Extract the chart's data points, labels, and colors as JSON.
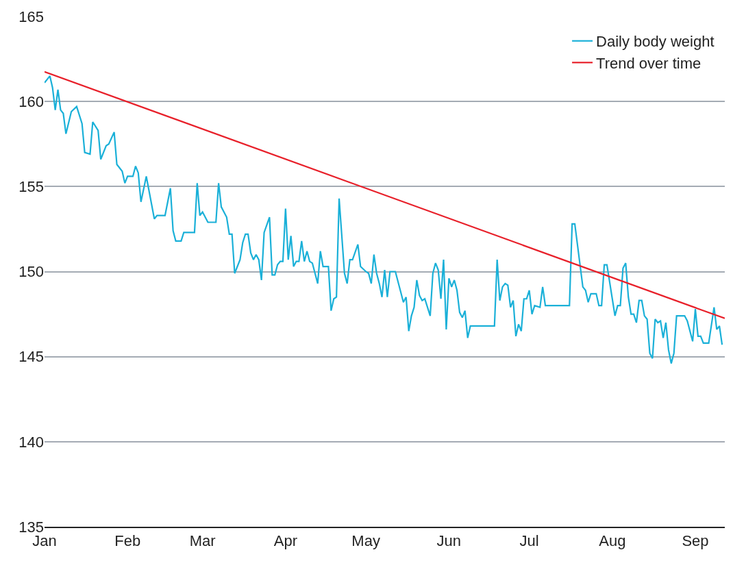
{
  "chart_data": {
    "type": "line",
    "xlim": [
      "--01-01",
      "--09-12"
    ],
    "xticks": [
      {
        "value": "--01-01",
        "label": "Jan"
      },
      {
        "value": "--02-01",
        "label": "Feb"
      },
      {
        "value": "--03-01",
        "label": "Mar"
      },
      {
        "value": "--04-01",
        "label": "Apr"
      },
      {
        "value": "--05-01",
        "label": "May"
      },
      {
        "value": "--06-01",
        "label": "Jun"
      },
      {
        "value": "--07-01",
        "label": "Jul"
      },
      {
        "value": "--08-01",
        "label": "Aug"
      },
      {
        "value": "--09-01",
        "label": "Sep"
      }
    ],
    "ylim": [
      135,
      165
    ],
    "yticks": [
      135,
      140,
      145,
      150,
      155,
      160,
      165
    ],
    "grid": "y",
    "legend": "top right",
    "marker": "none",
    "line_style": "solid",
    "series": [
      {
        "name": "Daily body weight",
        "color": "#1ab0d8",
        "x": [
          "--01-01",
          "--01-03",
          "--01-04",
          "--01-05",
          "--01-06",
          "--01-07",
          "--01-08",
          "--01-09",
          "--01-11",
          "--01-13",
          "--01-15",
          "--01-16",
          "--01-18",
          "--01-19",
          "--01-21",
          "--01-22",
          "--01-24",
          "--01-25",
          "--01-27",
          "--01-28",
          "--01-30",
          "--01-31",
          "--02-01",
          "--02-03",
          "--02-04",
          "--02-05",
          "--02-06",
          "--02-08",
          "--02-11",
          "--02-12",
          "--02-15",
          "--02-17",
          "--02-18",
          "--02-19",
          "--02-21",
          "--02-22",
          "--02-26",
          "--02-27",
          "--02-28",
          "--03-01",
          "--03-03",
          "--03-06",
          "--03-07",
          "--03-08",
          "--03-10",
          "--03-11",
          "--03-12",
          "--03-13",
          "--03-15",
          "--03-16",
          "--03-17",
          "--03-18",
          "--03-19",
          "--03-20",
          "--03-21",
          "--03-22",
          "--03-23",
          "--03-24",
          "--03-26",
          "--03-27",
          "--03-28",
          "--03-29",
          "--03-30",
          "--03-31",
          "--04-01",
          "--04-02",
          "--04-03",
          "--04-04",
          "--04-05",
          "--04-06",
          "--04-07",
          "--04-08",
          "--04-09",
          "--04-10",
          "--04-11",
          "--04-13",
          "--04-14",
          "--04-15",
          "--04-16",
          "--04-17",
          "--04-18",
          "--04-19",
          "--04-20",
          "--04-21",
          "--04-23",
          "--04-24",
          "--04-25",
          "--04-26",
          "--04-28",
          "--04-29",
          "--05-01",
          "--05-02",
          "--05-03",
          "--05-04",
          "--05-05",
          "--05-06",
          "--05-07",
          "--05-08",
          "--05-09",
          "--05-10",
          "--05-12",
          "--05-14",
          "--05-15",
          "--05-16",
          "--05-17",
          "--05-18",
          "--05-19",
          "--05-20",
          "--05-21",
          "--05-22",
          "--05-23",
          "--05-24",
          "--05-25",
          "--05-26",
          "--05-27",
          "--05-28",
          "--05-29",
          "--05-30",
          "--05-31",
          "--06-01",
          "--06-02",
          "--06-03",
          "--06-04",
          "--06-05",
          "--06-06",
          "--06-07",
          "--06-08",
          "--06-09",
          "--06-18",
          "--06-19",
          "--06-20",
          "--06-21",
          "--06-22",
          "--06-23",
          "--06-24",
          "--06-25",
          "--06-26",
          "--06-27",
          "--06-28",
          "--06-29",
          "--06-30",
          "--07-01",
          "--07-02",
          "--07-03",
          "--07-05",
          "--07-06",
          "--07-07",
          "--07-16",
          "--07-17",
          "--07-18",
          "--07-21",
          "--07-22",
          "--07-23",
          "--07-24",
          "--07-26",
          "--07-27",
          "--07-28",
          "--07-29",
          "--07-30",
          "--08-01",
          "--08-02",
          "--08-03",
          "--08-04",
          "--08-05",
          "--08-06",
          "--08-07",
          "--08-08",
          "--08-09",
          "--08-10",
          "--08-11",
          "--08-12",
          "--08-13",
          "--08-14",
          "--08-15",
          "--08-16",
          "--08-17",
          "--08-18",
          "--08-19",
          "--08-20",
          "--08-21",
          "--08-22",
          "--08-23",
          "--08-24",
          "--08-25",
          "--08-28",
          "--08-29",
          "--08-31",
          "--09-01",
          "--09-02",
          "--09-03",
          "--09-04",
          "--09-06",
          "--09-08",
          "--09-09",
          "--09-10",
          "--09-11"
        ],
        "values": [
          161.1,
          161.5,
          160.8,
          159.5,
          160.7,
          159.5,
          159.3,
          158.1,
          159.4,
          159.7,
          158.7,
          157.0,
          156.9,
          158.8,
          158.3,
          156.6,
          157.4,
          157.5,
          158.2,
          156.3,
          155.9,
          155.2,
          155.6,
          155.6,
          156.2,
          155.8,
          154.1,
          155.6,
          153.1,
          153.3,
          153.3,
          154.9,
          152.4,
          151.8,
          151.8,
          152.3,
          152.3,
          155.2,
          153.3,
          153.5,
          152.9,
          152.9,
          155.2,
          153.8,
          153.2,
          152.2,
          152.2,
          149.9,
          150.7,
          151.7,
          152.2,
          152.2,
          151.1,
          150.7,
          151.0,
          150.7,
          149.5,
          152.3,
          153.2,
          149.8,
          149.8,
          150.4,
          150.6,
          150.6,
          153.7,
          150.7,
          152.1,
          150.3,
          150.6,
          150.6,
          151.8,
          150.6,
          151.2,
          150.6,
          150.5,
          149.3,
          151.2,
          150.3,
          150.3,
          150.3,
          147.7,
          148.4,
          148.5,
          154.3,
          149.9,
          149.3,
          150.7,
          150.7,
          151.6,
          150.3,
          150.0,
          149.9,
          149.3,
          151.0,
          149.9,
          149.3,
          148.5,
          150.1,
          148.5,
          150.0,
          150.0,
          148.8,
          148.2,
          148.5,
          146.5,
          147.4,
          147.9,
          149.5,
          148.6,
          148.3,
          148.4,
          147.9,
          147.4,
          149.9,
          150.5,
          150.1,
          148.4,
          150.7,
          146.6,
          149.6,
          149.1,
          149.5,
          148.9,
          147.6,
          147.3,
          147.7,
          146.1,
          146.8,
          146.8,
          150.7,
          148.3,
          149.1,
          149.3,
          149.2,
          147.9,
          148.3,
          146.2,
          146.9,
          146.5,
          148.4,
          148.4,
          148.9,
          147.5,
          148.0,
          147.9,
          149.1,
          148.0,
          148.0,
          152.8,
          152.8,
          149.1,
          148.9,
          148.2,
          148.7,
          148.7,
          148.0,
          148.0,
          150.4,
          150.4,
          148.4,
          147.4,
          148.0,
          148.0,
          150.2,
          150.5,
          148.5,
          147.5,
          147.5,
          147.0,
          148.3,
          148.3,
          147.4,
          147.2,
          145.2,
          144.9,
          147.2,
          147.0,
          147.1,
          146.1,
          147.0,
          145.4,
          144.6,
          145.2,
          147.4,
          147.4,
          147.1,
          145.9,
          147.8,
          146.2,
          146.2,
          145.8,
          145.8,
          147.9,
          146.6,
          146.8,
          145.7
        ]
      },
      {
        "name": "Trend over time",
        "color": "#e8202a",
        "x": [
          "--01-01",
          "--09-12"
        ],
        "values": [
          161.75,
          147.25
        ]
      }
    ]
  }
}
